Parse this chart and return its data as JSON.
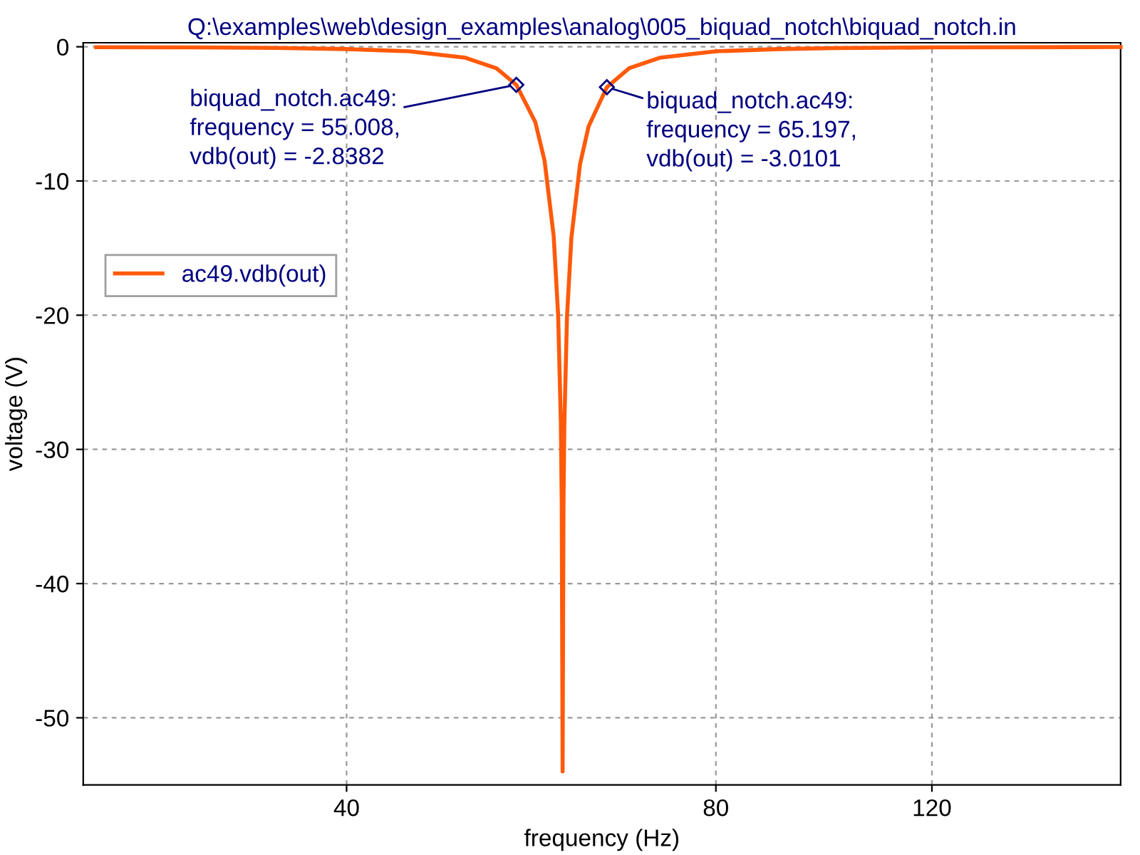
{
  "chart_data": {
    "type": "line",
    "title": "Q:\\examples\\web\\design_examples\\analog\\005_biquad_notch\\biquad_notch.in",
    "xlabel": "frequency (Hz)",
    "ylabel": "voltage (V)",
    "log": "x",
    "x": [
      25,
      30,
      35,
      40,
      45,
      50,
      53,
      55.008,
      57,
      58,
      59,
      59.5,
      59.8,
      59.9,
      60,
      60.1,
      60.2,
      60.5,
      61,
      62,
      63,
      65.197,
      68,
      72,
      80,
      90,
      100,
      120,
      171
    ],
    "series": [
      {
        "name": "ac49.vdb(out)",
        "color": "#ff5a0a",
        "values": [
          -0.03,
          -0.05,
          -0.09,
          -0.17,
          -0.34,
          -0.82,
          -1.61,
          -2.8382,
          -5.61,
          -8.48,
          -14.08,
          -20.01,
          -27.95,
          -33.97,
          -54,
          -33.99,
          -27.98,
          -20.07,
          -14.2,
          -8.73,
          -5.93,
          -3.0101,
          -1.59,
          -0.82,
          -0.34,
          -0.17,
          -0.1,
          -0.05,
          -0.02
        ]
      }
    ],
    "xlim": [
      24.4,
      171
    ],
    "xticks": [
      40,
      80,
      120
    ],
    "ylim": [
      -55,
      0.3
    ],
    "yticks": [
      0,
      -10,
      -20,
      -30,
      -40,
      -50
    ],
    "grid": true,
    "legend": "left",
    "marker": "none",
    "line_style": "solid",
    "annotations": [
      {
        "text": "biquad_notch.ac49:\nfrequency = 55.008,\nvdb(out) = -2.8382",
        "x": 55.008,
        "y": -2.8382
      },
      {
        "text": "biquad_notch.ac49:\nfrequency = 65.197,\nvdb(out) = -3.0101",
        "x": 65.197,
        "y": -3.0101
      }
    ]
  }
}
